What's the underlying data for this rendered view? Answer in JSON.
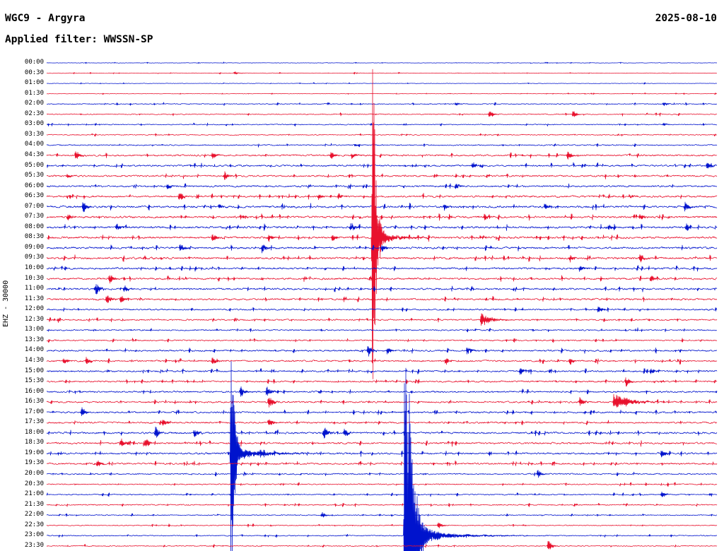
{
  "header": {
    "title": "WGC9 - Argyra",
    "date": "2025-08-10",
    "filter": "Applied filter: WWSSN-SP",
    "channel_scale": "EHZ - 30000"
  },
  "chart_data": {
    "type": "line",
    "subtype": "helicorder-dayplot",
    "title": "WGC9 - Argyra",
    "date": "2025-08-10",
    "filter": "WWSSN-SP",
    "ylabel": "EHZ - 30000",
    "minutes_per_row": 30,
    "start_time": "00:00",
    "end_time": "24:00",
    "legend": "none",
    "grid": false,
    "colors": {
      "red": "#e8112d",
      "blue": "#0013cd"
    },
    "major_events": [
      {
        "time_row": "08:30",
        "position_fraction": 0.486,
        "color": "red",
        "relative_amplitude": 258
      },
      {
        "time_row": "19:00",
        "position_fraction": 0.275,
        "color": "blue",
        "relative_amplitude": 200
      },
      {
        "time_row": "23:00",
        "position_fraction": 0.534,
        "color": "blue",
        "relative_amplitude": 350
      }
    ],
    "rows": [
      {
        "t": "00:00",
        "c": "blue",
        "n": 0.3,
        "e": []
      },
      {
        "t": "00:30",
        "c": "red",
        "n": 0.35,
        "e": [
          {
            "p": 0.28,
            "a": 2
          }
        ]
      },
      {
        "t": "01:00",
        "c": "blue",
        "n": 0.3,
        "e": []
      },
      {
        "t": "01:30",
        "c": "red",
        "n": 0.3,
        "e": []
      },
      {
        "t": "02:00",
        "c": "blue",
        "n": 0.6,
        "e": [
          {
            "p": 0.61,
            "a": 2
          },
          {
            "p": 0.92,
            "a": 3
          }
        ]
      },
      {
        "t": "02:30",
        "c": "red",
        "n": 0.6,
        "e": [
          {
            "p": 0.66,
            "a": 5
          },
          {
            "p": 0.785,
            "a": 5
          }
        ]
      },
      {
        "t": "03:00",
        "c": "blue",
        "n": 0.6,
        "e": [
          {
            "p": 0.92,
            "a": 2
          }
        ]
      },
      {
        "t": "03:30",
        "c": "red",
        "n": 0.6,
        "e": []
      },
      {
        "t": "04:00",
        "c": "blue",
        "n": 0.7,
        "e": [
          {
            "p": 0.46,
            "a": 2
          }
        ]
      },
      {
        "t": "04:30",
        "c": "red",
        "n": 1.0,
        "e": [
          {
            "p": 0.043,
            "a": 8
          },
          {
            "p": 0.247,
            "a": 5
          },
          {
            "p": 0.424,
            "a": 5
          },
          {
            "p": 0.455,
            "a": 4
          },
          {
            "p": 0.777,
            "a": 6
          }
        ]
      },
      {
        "t": "05:00",
        "c": "blue",
        "n": 1.0,
        "e": [
          {
            "p": 0.635,
            "a": 6
          },
          {
            "p": 0.985,
            "a": 5
          }
        ]
      },
      {
        "t": "05:30",
        "c": "red",
        "n": 1.0,
        "e": [
          {
            "p": 0.03,
            "a": 3
          },
          {
            "p": 0.265,
            "a": 6
          }
        ]
      },
      {
        "t": "06:00",
        "c": "blue",
        "n": 1.0,
        "e": [
          {
            "p": 0.18,
            "a": 4
          },
          {
            "p": 0.61,
            "a": 4
          }
        ]
      },
      {
        "t": "06:30",
        "c": "red",
        "n": 1.1,
        "e": [
          {
            "p": 0.031,
            "a": 4
          },
          {
            "p": 0.199,
            "a": 5
          },
          {
            "p": 0.405,
            "a": 4
          },
          {
            "p": 0.435,
            "a": 4
          },
          {
            "p": 0.869,
            "a": 3
          }
        ]
      },
      {
        "t": "07:00",
        "c": "blue",
        "n": 1.2,
        "e": [
          {
            "p": 0.054,
            "a": 8
          },
          {
            "p": 0.257,
            "a": 4
          },
          {
            "p": 0.593,
            "a": 5
          },
          {
            "p": 0.743,
            "a": 4
          },
          {
            "p": 0.952,
            "a": 7
          }
        ]
      },
      {
        "t": "07:30",
        "c": "red",
        "n": 1.2,
        "e": [
          {
            "p": 0.031,
            "a": 5
          },
          {
            "p": 0.289,
            "a": 4
          },
          {
            "p": 0.653,
            "a": 4
          },
          {
            "p": 0.885,
            "a": 5
          }
        ]
      },
      {
        "t": "08:00",
        "c": "blue",
        "n": 1.2,
        "e": [
          {
            "p": 0.104,
            "a": 5
          },
          {
            "p": 0.453,
            "a": 7
          },
          {
            "p": 0.838,
            "a": 4
          },
          {
            "p": 0.954,
            "a": 5
          }
        ]
      },
      {
        "t": "08:30",
        "c": "red",
        "n": 1.2,
        "e": [
          {
            "p": 0.247,
            "a": 6
          },
          {
            "p": 0.331,
            "a": 5
          },
          {
            "p": 0.426,
            "a": 5
          },
          {
            "p": 0.486,
            "a": 258,
            "s": 0.0015,
            "d": 0.004
          },
          {
            "p": 0.49,
            "a": 8,
            "d": 0.03
          }
        ]
      },
      {
        "t": "09:00",
        "c": "blue",
        "n": 1.2,
        "e": [
          {
            "p": 0.199,
            "a": 6
          },
          {
            "p": 0.321,
            "a": 7
          },
          {
            "p": 0.5,
            "a": 5
          }
        ]
      },
      {
        "t": "09:30",
        "c": "red",
        "n": 1.2,
        "e": [
          {
            "p": 0.78,
            "a": 5
          },
          {
            "p": 0.885,
            "a": 6
          }
        ]
      },
      {
        "t": "10:00",
        "c": "blue",
        "n": 1.1,
        "e": [
          {
            "p": 0.795,
            "a": 4
          }
        ]
      },
      {
        "t": "10:30",
        "c": "red",
        "n": 1.1,
        "e": [
          {
            "p": 0.094,
            "a": 6
          },
          {
            "p": 0.901,
            "a": 5
          }
        ]
      },
      {
        "t": "11:00",
        "c": "blue",
        "n": 1.1,
        "e": [
          {
            "p": 0.073,
            "a": 9
          },
          {
            "p": 0.115,
            "a": 6
          }
        ]
      },
      {
        "t": "11:30",
        "c": "red",
        "n": 1.1,
        "e": [
          {
            "p": 0.089,
            "a": 8
          },
          {
            "p": 0.11,
            "a": 5
          }
        ]
      },
      {
        "t": "12:00",
        "c": "blue",
        "n": 0.9,
        "e": [
          {
            "p": 0.822,
            "a": 5
          }
        ]
      },
      {
        "t": "12:30",
        "c": "red",
        "n": 0.9,
        "e": [
          {
            "p": 0.648,
            "a": 10,
            "d": 0.012
          }
        ]
      },
      {
        "t": "13:00",
        "c": "blue",
        "n": 0.8,
        "e": []
      },
      {
        "t": "13:30",
        "c": "red",
        "n": 0.8,
        "e": []
      },
      {
        "t": "14:00",
        "c": "blue",
        "n": 1.0,
        "e": [
          {
            "p": 0.479,
            "a": 8
          },
          {
            "p": 0.508,
            "a": 5
          },
          {
            "p": 0.627,
            "a": 7
          }
        ]
      },
      {
        "t": "14:30",
        "c": "red",
        "n": 1.0,
        "e": [
          {
            "p": 0.025,
            "a": 5
          },
          {
            "p": 0.059,
            "a": 5
          },
          {
            "p": 0.247,
            "a": 6
          },
          {
            "p": 0.595,
            "a": 6
          },
          {
            "p": 0.78,
            "a": 5
          }
        ]
      },
      {
        "t": "15:00",
        "c": "blue",
        "n": 1.0,
        "e": [
          {
            "p": 0.706,
            "a": 5
          },
          {
            "p": 0.901,
            "a": 5
          }
        ]
      },
      {
        "t": "15:30",
        "c": "red",
        "n": 1.0,
        "e": [
          {
            "p": 0.864,
            "a": 7
          }
        ]
      },
      {
        "t": "16:00",
        "c": "blue",
        "n": 1.0,
        "e": [
          {
            "p": 0.289,
            "a": 9
          },
          {
            "p": 0.328,
            "a": 8
          }
        ]
      },
      {
        "t": "16:30",
        "c": "red",
        "n": 1.0,
        "e": [
          {
            "p": 0.331,
            "a": 10
          },
          {
            "p": 0.795,
            "a": 6
          },
          {
            "p": 0.846,
            "a": 12,
            "d": 0.02
          }
        ]
      },
      {
        "t": "17:00",
        "c": "blue",
        "n": 1.0,
        "e": [
          {
            "p": 0.052,
            "a": 7
          }
        ]
      },
      {
        "t": "17:30",
        "c": "red",
        "n": 1.0,
        "e": [
          {
            "p": 0.173,
            "a": 6
          },
          {
            "p": 0.331,
            "a": 7
          }
        ]
      },
      {
        "t": "18:00",
        "c": "blue",
        "n": 1.1,
        "e": [
          {
            "p": 0.162,
            "a": 9
          },
          {
            "p": 0.22,
            "a": 6
          },
          {
            "p": 0.413,
            "a": 10
          },
          {
            "p": 0.444,
            "a": 6
          }
        ]
      },
      {
        "t": "18:30",
        "c": "red",
        "n": 1.1,
        "e": [
          {
            "p": 0.11,
            "a": 6
          },
          {
            "p": 0.147,
            "a": 7
          }
        ]
      },
      {
        "t": "19:00",
        "c": "blue",
        "n": 1.1,
        "e": [
          {
            "p": 0.275,
            "a": 200,
            "s": 0.0015,
            "d": 0.0035
          },
          {
            "p": 0.279,
            "a": 8,
            "d": 0.04
          },
          {
            "p": 0.917,
            "a": 6
          }
        ]
      },
      {
        "t": "19:30",
        "c": "red",
        "n": 1.0,
        "e": [
          {
            "p": 0.075,
            "a": 6
          }
        ]
      },
      {
        "t": "20:00",
        "c": "blue",
        "n": 0.8,
        "e": [
          {
            "p": 0.732,
            "a": 6
          }
        ]
      },
      {
        "t": "20:30",
        "c": "red",
        "n": 0.7,
        "e": []
      },
      {
        "t": "21:00",
        "c": "blue",
        "n": 0.7,
        "e": [
          {
            "p": 0.917,
            "a": 5
          }
        ]
      },
      {
        "t": "21:30",
        "c": "red",
        "n": 0.7,
        "e": []
      },
      {
        "t": "22:00",
        "c": "blue",
        "n": 0.6,
        "e": [
          {
            "p": 0.41,
            "a": 4
          }
        ]
      },
      {
        "t": "22:30",
        "c": "red",
        "n": 0.6,
        "e": [
          {
            "p": 0.584,
            "a": 5
          }
        ]
      },
      {
        "t": "23:00",
        "c": "blue",
        "n": 0.6,
        "e": [
          {
            "p": 0.534,
            "a": 350,
            "s": 0.002,
            "d": 0.009
          },
          {
            "p": 0.54,
            "a": 10,
            "d": 0.05
          }
        ]
      },
      {
        "t": "23:30",
        "c": "red",
        "n": 0.6,
        "e": [
          {
            "p": 0.748,
            "a": 8
          }
        ]
      }
    ]
  }
}
